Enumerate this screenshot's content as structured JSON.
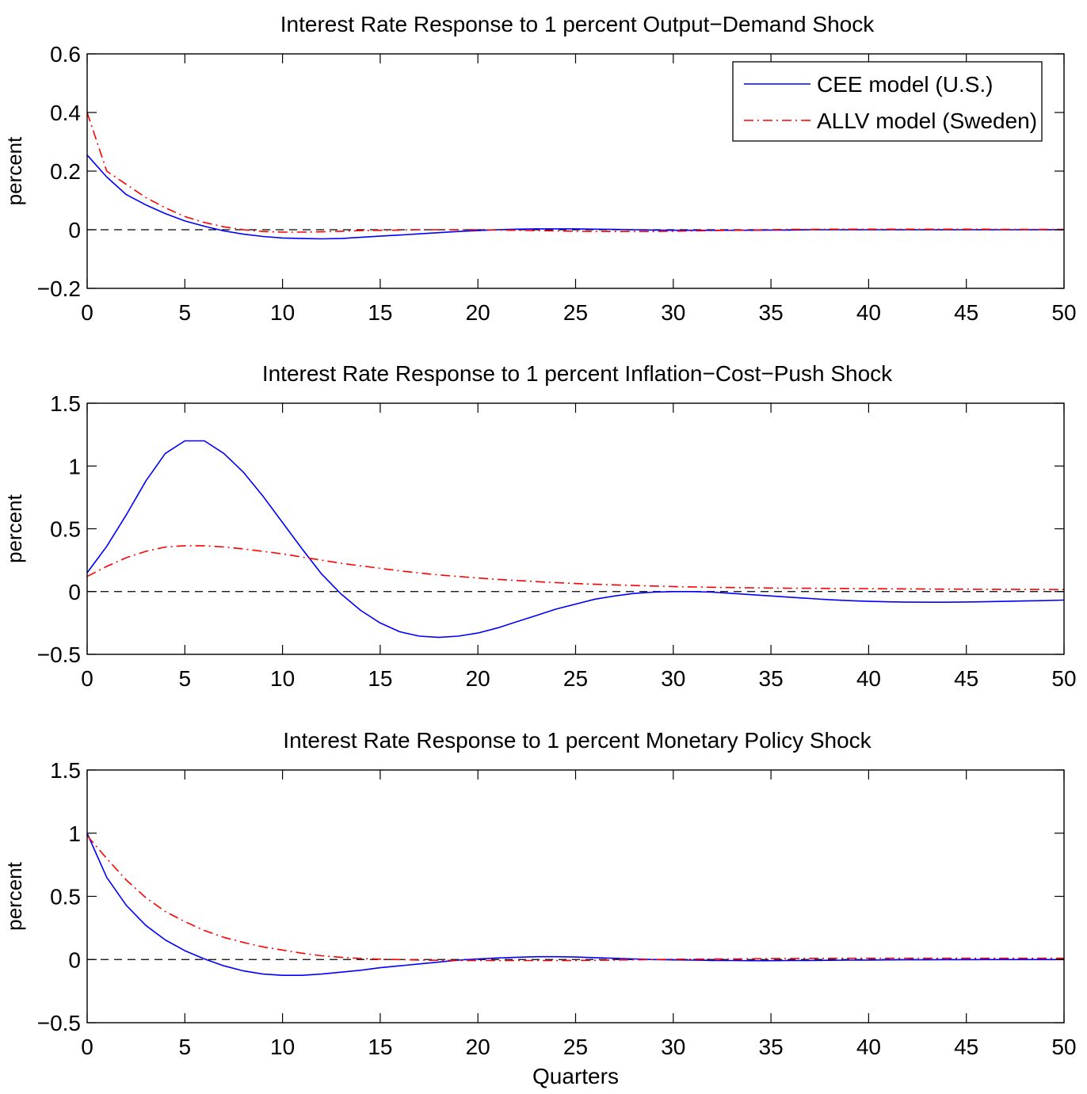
{
  "colors": {
    "cee": "#0000ff",
    "allv": "#ff0000",
    "zero_line": "#000000"
  },
  "legend": {
    "location": "top-right of first panel",
    "entries": [
      {
        "name": "CEE model (U.S.)",
        "color": "#0000ff",
        "style": "solid"
      },
      {
        "name": "ALLV model (Sweden)",
        "color": "#ff0000",
        "style": "dash-dot"
      }
    ]
  },
  "chart_data": [
    {
      "type": "line",
      "title": "Interest Rate Response to 1 percent Output−Demand Shock",
      "xlabel": "",
      "ylabel": "percent",
      "xlim": [
        0,
        50
      ],
      "ylim": [
        -0.2,
        0.6
      ],
      "xticks": [
        "0",
        "5",
        "10",
        "15",
        "20",
        "25",
        "30",
        "35",
        "40",
        "45",
        "50"
      ],
      "yticks": [
        {
          "v": -0.2,
          "label": "−0.2"
        },
        {
          "v": 0,
          "label": "0"
        },
        {
          "v": 0.2,
          "label": "0.2"
        },
        {
          "v": 0.4,
          "label": "0.4"
        },
        {
          "v": 0.6,
          "label": "0.6"
        }
      ],
      "x": [
        0,
        1,
        2,
        3,
        4,
        5,
        6,
        7,
        8,
        9,
        10,
        11,
        12,
        13,
        14,
        15,
        16,
        17,
        18,
        19,
        20,
        21,
        22,
        23,
        24,
        25,
        26,
        27,
        28,
        29,
        30,
        31,
        32,
        33,
        34,
        35,
        36,
        37,
        38,
        39,
        40,
        41,
        42,
        43,
        44,
        45,
        46,
        47,
        48,
        49,
        50
      ],
      "series": [
        {
          "name": "CEE model (U.S.)",
          "values": [
            0.255,
            0.18,
            0.12,
            0.085,
            0.055,
            0.03,
            0.012,
            -0.004,
            -0.015,
            -0.023,
            -0.028,
            -0.03,
            -0.031,
            -0.03,
            -0.026,
            -0.022,
            -0.018,
            -0.014,
            -0.01,
            -0.006,
            -0.003,
            0.0,
            0.002,
            0.003,
            0.003,
            0.003,
            0.002,
            0.001,
            0.0,
            -0.001,
            -0.002,
            -0.002,
            -0.002,
            -0.002,
            -0.002,
            -0.001,
            -0.001,
            0.0,
            0.0,
            0.0,
            0.0,
            0.0,
            0.0,
            0.0,
            0.0,
            0.0,
            0.0,
            0.0,
            0.0,
            0.0,
            0.0
          ]
        },
        {
          "name": "ALLV model (Sweden)",
          "values": [
            0.4,
            0.2,
            0.155,
            0.11,
            0.075,
            0.045,
            0.025,
            0.01,
            0.0,
            -0.006,
            -0.008,
            -0.008,
            -0.007,
            -0.005,
            -0.003,
            -0.002,
            -0.001,
            0.0,
            0.0,
            0.0,
            0.0,
            -0.001,
            -0.002,
            -0.003,
            -0.004,
            -0.005,
            -0.006,
            -0.006,
            -0.006,
            -0.006,
            -0.005,
            -0.004,
            -0.003,
            -0.002,
            -0.001,
            0.0,
            0.001,
            0.001,
            0.002,
            0.002,
            0.002,
            0.002,
            0.002,
            0.002,
            0.002,
            0.002,
            0.002,
            0.001,
            0.001,
            0.001,
            0.001
          ]
        }
      ]
    },
    {
      "type": "line",
      "title": "Interest Rate Response to 1 percent Inflation−Cost−Push Shock",
      "xlabel": "",
      "ylabel": "percent",
      "xlim": [
        0,
        50
      ],
      "ylim": [
        -0.5,
        1.5
      ],
      "xticks": [
        "0",
        "5",
        "10",
        "15",
        "20",
        "25",
        "30",
        "35",
        "40",
        "45",
        "50"
      ],
      "yticks": [
        {
          "v": -0.5,
          "label": "−0.5"
        },
        {
          "v": 0,
          "label": "0"
        },
        {
          "v": 0.5,
          "label": "0.5"
        },
        {
          "v": 1,
          "label": "1"
        },
        {
          "v": 1.5,
          "label": "1.5"
        }
      ],
      "x": [
        0,
        1,
        2,
        3,
        4,
        5,
        6,
        7,
        8,
        9,
        10,
        11,
        12,
        13,
        14,
        15,
        16,
        17,
        18,
        19,
        20,
        21,
        22,
        23,
        24,
        25,
        26,
        27,
        28,
        29,
        30,
        31,
        32,
        33,
        34,
        35,
        36,
        37,
        38,
        39,
        40,
        41,
        42,
        43,
        44,
        45,
        46,
        47,
        48,
        49,
        50
      ],
      "series": [
        {
          "name": "CEE model (U.S.)",
          "values": [
            0.15,
            0.36,
            0.61,
            0.88,
            1.1,
            1.2,
            1.2,
            1.1,
            0.95,
            0.76,
            0.55,
            0.34,
            0.14,
            -0.02,
            -0.15,
            -0.25,
            -0.32,
            -0.355,
            -0.365,
            -0.355,
            -0.33,
            -0.29,
            -0.24,
            -0.19,
            -0.14,
            -0.1,
            -0.06,
            -0.035,
            -0.015,
            -0.005,
            0.0,
            0.0,
            -0.005,
            -0.015,
            -0.025,
            -0.035,
            -0.045,
            -0.055,
            -0.065,
            -0.072,
            -0.078,
            -0.082,
            -0.084,
            -0.085,
            -0.085,
            -0.083,
            -0.081,
            -0.078,
            -0.075,
            -0.072,
            -0.068
          ]
        },
        {
          "name": "ALLV model (Sweden)",
          "values": [
            0.12,
            0.2,
            0.27,
            0.32,
            0.355,
            0.365,
            0.365,
            0.355,
            0.34,
            0.32,
            0.3,
            0.275,
            0.25,
            0.225,
            0.205,
            0.185,
            0.165,
            0.148,
            0.133,
            0.12,
            0.108,
            0.097,
            0.088,
            0.079,
            0.071,
            0.064,
            0.058,
            0.053,
            0.048,
            0.044,
            0.04,
            0.037,
            0.034,
            0.032,
            0.03,
            0.028,
            0.027,
            0.026,
            0.025,
            0.024,
            0.023,
            0.022,
            0.021,
            0.02,
            0.019,
            0.019,
            0.018,
            0.018,
            0.017,
            0.017,
            0.016
          ]
        }
      ]
    },
    {
      "type": "line",
      "title": "Interest Rate Response to 1 percent Monetary Policy Shock",
      "xlabel": "Quarters",
      "ylabel": "percent",
      "xlim": [
        0,
        50
      ],
      "ylim": [
        -0.5,
        1.5
      ],
      "xticks": [
        "0",
        "5",
        "10",
        "15",
        "20",
        "25",
        "30",
        "35",
        "40",
        "45",
        "50"
      ],
      "yticks": [
        {
          "v": -0.5,
          "label": "−0.5"
        },
        {
          "v": 0,
          "label": "0"
        },
        {
          "v": 0.5,
          "label": "0.5"
        },
        {
          "v": 1,
          "label": "1"
        },
        {
          "v": 1.5,
          "label": "1.5"
        }
      ],
      "x": [
        0,
        1,
        2,
        3,
        4,
        5,
        6,
        7,
        8,
        9,
        10,
        11,
        12,
        13,
        14,
        15,
        16,
        17,
        18,
        19,
        20,
        21,
        22,
        23,
        24,
        25,
        26,
        27,
        28,
        29,
        30,
        31,
        32,
        33,
        34,
        35,
        36,
        37,
        38,
        39,
        40,
        41,
        42,
        43,
        44,
        45,
        46,
        47,
        48,
        49,
        50
      ],
      "series": [
        {
          "name": "CEE model (U.S.)",
          "values": [
            1.0,
            0.65,
            0.43,
            0.27,
            0.155,
            0.07,
            0.005,
            -0.05,
            -0.09,
            -0.115,
            -0.125,
            -0.125,
            -0.115,
            -0.1,
            -0.085,
            -0.065,
            -0.05,
            -0.035,
            -0.02,
            -0.005,
            0.005,
            0.012,
            0.018,
            0.022,
            0.022,
            0.02,
            0.015,
            0.01,
            0.005,
            0.0,
            -0.003,
            -0.005,
            -0.007,
            -0.008,
            -0.009,
            -0.009,
            -0.008,
            -0.007,
            -0.006,
            -0.005,
            -0.004,
            -0.003,
            -0.002,
            -0.002,
            -0.001,
            -0.001,
            0.0,
            0.0,
            0.0,
            0.0,
            0.0
          ]
        },
        {
          "name": "ALLV model (Sweden)",
          "values": [
            0.98,
            0.8,
            0.63,
            0.49,
            0.38,
            0.3,
            0.23,
            0.175,
            0.135,
            0.1,
            0.075,
            0.05,
            0.03,
            0.018,
            0.008,
            0.003,
            0.0,
            -0.004,
            -0.006,
            -0.007,
            -0.007,
            -0.008,
            -0.008,
            -0.008,
            -0.008,
            -0.007,
            -0.006,
            -0.004,
            -0.002,
            0.0,
            0.002,
            0.003,
            0.004,
            0.005,
            0.006,
            0.007,
            0.008,
            0.009,
            0.009,
            0.01,
            0.01,
            0.01,
            0.01,
            0.01,
            0.01,
            0.01,
            0.01,
            0.01,
            0.01,
            0.01,
            0.01
          ]
        }
      ]
    }
  ]
}
